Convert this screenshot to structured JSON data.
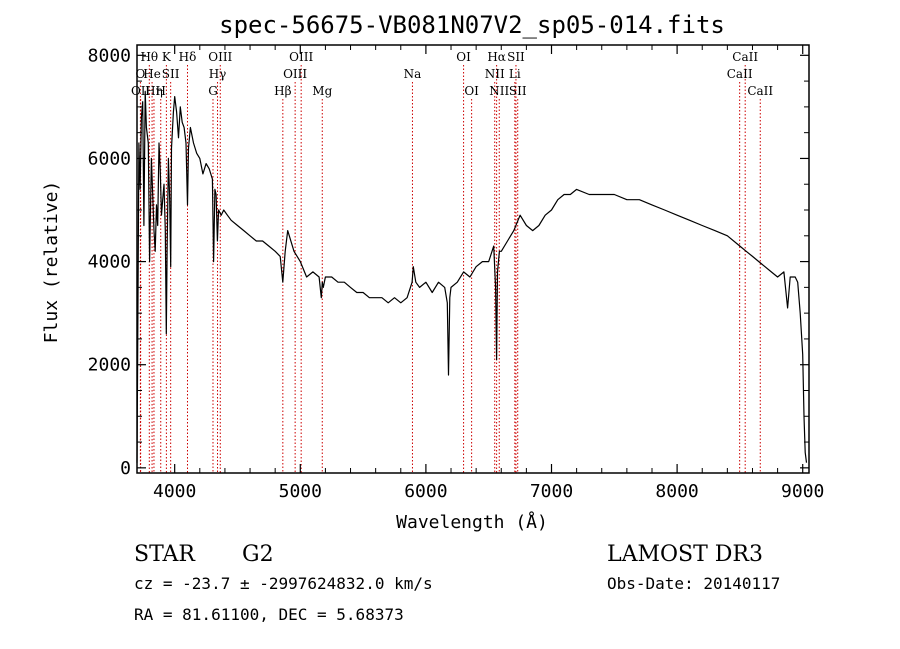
{
  "chart_data": {
    "type": "line",
    "title": "spec-56675-VB081N07V2_sp05-014.fits",
    "xlabel": "Wavelength (Å)",
    "ylabel": "Flux (relative)",
    "xlim": [
      3700,
      9050
    ],
    "ylim": [
      -100,
      8200
    ],
    "xticks": [
      4000,
      5000,
      6000,
      7000,
      8000,
      9000
    ],
    "yticks": [
      0,
      2000,
      4000,
      6000,
      8000
    ],
    "grid": false,
    "series": [
      {
        "name": "flux",
        "x": [
          3700,
          3705,
          3715,
          3725,
          3735,
          3745,
          3755,
          3765,
          3775,
          3790,
          3800,
          3815,
          3825,
          3835,
          3845,
          3855,
          3865,
          3875,
          3885,
          3895,
          3905,
          3915,
          3925,
          3933,
          3940,
          3950,
          3960,
          3968,
          3975,
          3990,
          4000,
          4015,
          4030,
          4045,
          4060,
          4075,
          4090,
          4102,
          4110,
          4125,
          4150,
          4175,
          4200,
          4225,
          4250,
          4275,
          4300,
          4310,
          4320,
          4330,
          4340,
          4350,
          4370,
          4390,
          4420,
          4450,
          4500,
          4550,
          4600,
          4650,
          4700,
          4750,
          4800,
          4840,
          4861,
          4880,
          4900,
          4950,
          5000,
          5050,
          5100,
          5150,
          5167,
          5175,
          5183,
          5200,
          5250,
          5300,
          5350,
          5400,
          5450,
          5500,
          5550,
          5600,
          5650,
          5700,
          5750,
          5800,
          5850,
          5890,
          5900,
          5920,
          5950,
          6000,
          6050,
          6100,
          6150,
          6170,
          6180,
          6190,
          6200,
          6250,
          6300,
          6350,
          6400,
          6450,
          6500,
          6540,
          6555,
          6563,
          6570,
          6585,
          6600,
          6650,
          6700,
          6750,
          6800,
          6850,
          6900,
          6950,
          7000,
          7050,
          7100,
          7150,
          7200,
          7300,
          7400,
          7500,
          7600,
          7700,
          7800,
          7900,
          8000,
          8100,
          8200,
          8300,
          8400,
          8500,
          8550,
          8600,
          8650,
          8700,
          8750,
          8800,
          8850,
          8880,
          8900,
          8920,
          8940,
          8960,
          8980,
          9000,
          9010,
          9020,
          9030
        ],
        "y": [
          100,
          2000,
          6300,
          5400,
          6800,
          7100,
          4700,
          7300,
          6600,
          6300,
          4000,
          6000,
          5300,
          4600,
          4200,
          5100,
          4700,
          6300,
          5800,
          4900,
          5200,
          5500,
          4600,
          2600,
          4200,
          6000,
          5200,
          3900,
          6200,
          6900,
          7200,
          6900,
          6400,
          7000,
          6700,
          6600,
          6300,
          5100,
          6200,
          6600,
          6300,
          6100,
          6000,
          5700,
          5900,
          5800,
          5600,
          4000,
          5400,
          5300,
          4400,
          5000,
          4900,
          5000,
          4900,
          4800,
          4700,
          4600,
          4500,
          4400,
          4400,
          4300,
          4200,
          4100,
          3600,
          4200,
          4600,
          4200,
          4000,
          3700,
          3800,
          3700,
          3300,
          3600,
          3500,
          3700,
          3700,
          3600,
          3600,
          3500,
          3400,
          3400,
          3300,
          3300,
          3300,
          3200,
          3300,
          3200,
          3300,
          3600,
          3900,
          3600,
          3500,
          3600,
          3400,
          3600,
          3500,
          3200,
          1800,
          3300,
          3500,
          3600,
          3800,
          3700,
          3900,
          4000,
          4000,
          4300,
          3500,
          2100,
          3800,
          4200,
          4200,
          4400,
          4600,
          4900,
          4700,
          4600,
          4700,
          4900,
          5000,
          5200,
          5300,
          5300,
          5400,
          5300,
          5300,
          5300,
          5200,
          5200,
          5100,
          5000,
          4900,
          4800,
          4700,
          4600,
          4500,
          4300,
          4200,
          4100,
          4000,
          3900,
          3800,
          3700,
          3800,
          3100,
          3700,
          3700,
          3700,
          3600,
          3000,
          2200,
          1000,
          300,
          100
        ]
      }
    ],
    "lines": [
      {
        "name": "O",
        "wl": 3727,
        "row": 1
      },
      {
        "name": "OII",
        "wl": 3729,
        "row": 2
      },
      {
        "name": "Hθ",
        "wl": 3798,
        "row": 0
      },
      {
        "name": "He",
        "wl": 3820,
        "row": 1
      },
      {
        "name": "Hη",
        "wl": 3835,
        "row": 2
      },
      {
        "name": "H",
        "wl": 3889,
        "row": 2
      },
      {
        "name": "K",
        "wl": 3934,
        "row": 0
      },
      {
        "name": "SII",
        "wl": 3968,
        "row": 1
      },
      {
        "name": "Hδ",
        "wl": 4102,
        "row": 0
      },
      {
        "name": "OIII",
        "wl": 4363,
        "row": 0
      },
      {
        "name": "Hγ",
        "wl": 4341,
        "row": 1
      },
      {
        "name": "G",
        "wl": 4305,
        "row": 2
      },
      {
        "name": "Hβ",
        "wl": 4861,
        "row": 2
      },
      {
        "name": "OIII",
        "wl": 5007,
        "row": 0
      },
      {
        "name": "OIII",
        "wl": 4959,
        "row": 1
      },
      {
        "name": "Mg",
        "wl": 5175,
        "row": 2
      },
      {
        "name": "Na",
        "wl": 5893,
        "row": 1
      },
      {
        "name": "OI",
        "wl": 6300,
        "row": 0
      },
      {
        "name": "OI",
        "wl": 6364,
        "row": 2
      },
      {
        "name": "Hα",
        "wl": 6563,
        "row": 0
      },
      {
        "name": "SII",
        "wl": 6717,
        "row": 0
      },
      {
        "name": "NII",
        "wl": 6548,
        "row": 1
      },
      {
        "name": "Li",
        "wl": 6708,
        "row": 1
      },
      {
        "name": "NII",
        "wl": 6584,
        "row": 2
      },
      {
        "name": "SII",
        "wl": 6731,
        "row": 2
      },
      {
        "name": "CaII",
        "wl": 8542,
        "row": 0
      },
      {
        "name": "CaII",
        "wl": 8498,
        "row": 1
      },
      {
        "name": "CaII",
        "wl": 8662,
        "row": 2
      }
    ]
  },
  "info": {
    "object_class": "STAR",
    "subclass": "G2",
    "survey": "LAMOST DR3",
    "cz": "cz = -23.7 ± -2997624832.0 km/s",
    "obs_date": "Obs-Date: 20140117",
    "coords": "RA =  81.61100, DEC =   5.68373"
  },
  "colors": {
    "spectrum": "#000000",
    "line_marker": "#cc0000",
    "axis": "#000000"
  }
}
